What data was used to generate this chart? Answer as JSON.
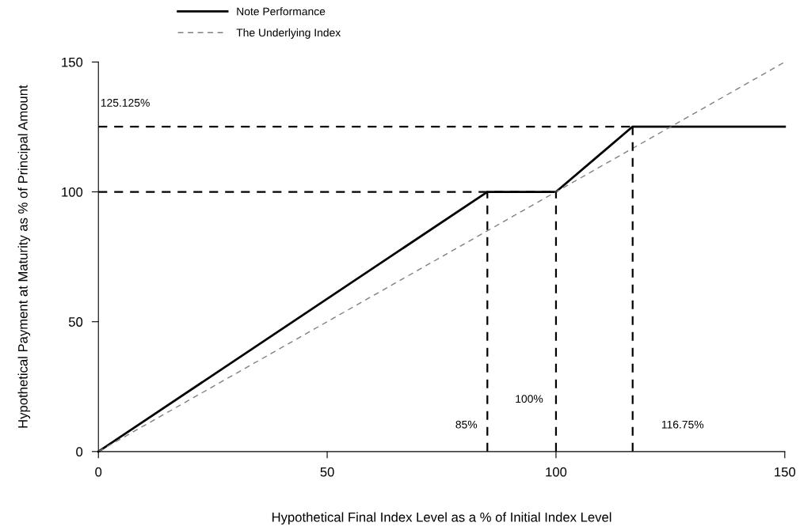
{
  "chart_data": {
    "type": "line",
    "xlabel": "Hypothetical Final Index Level as a % of Initial Index Level",
    "ylabel": "Hypothetical Payment at Maturity as % of Principal Amount",
    "xlim": [
      0,
      150
    ],
    "xticks": [
      0,
      50,
      100,
      150
    ],
    "ylim": [
      0,
      150
    ],
    "yticks": [
      0,
      50,
      100,
      150
    ],
    "grid": false,
    "legend": "top",
    "marker": "none",
    "series": [
      {
        "name": "Note Performance",
        "color": "#000000",
        "line_style": "solid",
        "x": [
          0,
          85,
          100,
          116.75,
          150
        ],
        "values": [
          0,
          100,
          100,
          125.125,
          125.125
        ]
      },
      {
        "name": "The Underlying Index",
        "color": "#808080",
        "line_style": "dashed",
        "x": [
          0,
          150
        ],
        "values": [
          0,
          150
        ]
      },
      {
        "color": "#000000",
        "line_style": "dashed",
        "x": [
          0,
          116.75
        ],
        "values": [
          125.125,
          125.125
        ]
      },
      {
        "color": "#000000",
        "line_style": "dashed",
        "x": [
          0,
          100
        ],
        "values": [
          100,
          100
        ]
      },
      {
        "color": "#000000",
        "line_style": "dashed",
        "x": [
          85,
          85
        ],
        "values": [
          0,
          100
        ]
      },
      {
        "color": "#000000",
        "line_style": "dashed",
        "x": [
          100,
          100
        ],
        "values": [
          0,
          100
        ]
      },
      {
        "color": "#000000",
        "line_style": "dashed",
        "x": [
          116.75,
          116.75
        ],
        "values": [
          0,
          125.125
        ]
      }
    ],
    "annotations": [
      "125.125%",
      "85%",
      "100%",
      "116.75%"
    ]
  }
}
